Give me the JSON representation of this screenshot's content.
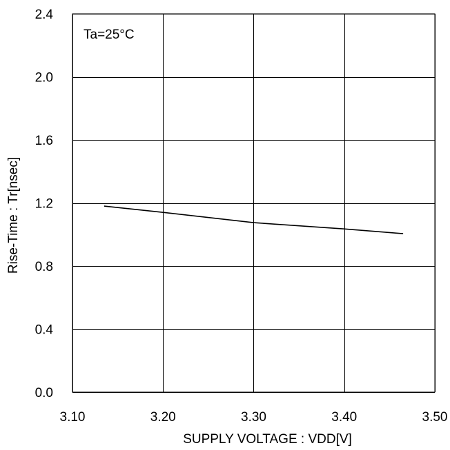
{
  "chart_data": {
    "type": "line",
    "title": "",
    "xlabel": "SUPPLY VOLTAGE : VDD[V]",
    "ylabel": "Rise-Time : Tr[nsec]",
    "xlim": [
      3.1,
      3.5
    ],
    "ylim": [
      0.0,
      2.4
    ],
    "x_ticks": [
      3.1,
      3.2,
      3.3,
      3.4,
      3.5
    ],
    "x_tick_labels": [
      "3.10",
      "3.20",
      "3.30",
      "3.40",
      "3.50"
    ],
    "y_ticks": [
      0.0,
      0.4,
      0.8,
      1.2,
      1.6,
      2.0,
      2.4
    ],
    "y_tick_labels": [
      "0.0",
      "0.4",
      "0.8",
      "1.2",
      "1.6",
      "2.0",
      "2.4"
    ],
    "grid": true,
    "annotation": "Ta=25°C",
    "series": [
      {
        "x": [
          3.135,
          3.2,
          3.3,
          3.4,
          3.465
        ],
        "values": [
          1.18,
          1.14,
          1.075,
          1.035,
          1.005
        ],
        "color": "#000000"
      }
    ]
  }
}
